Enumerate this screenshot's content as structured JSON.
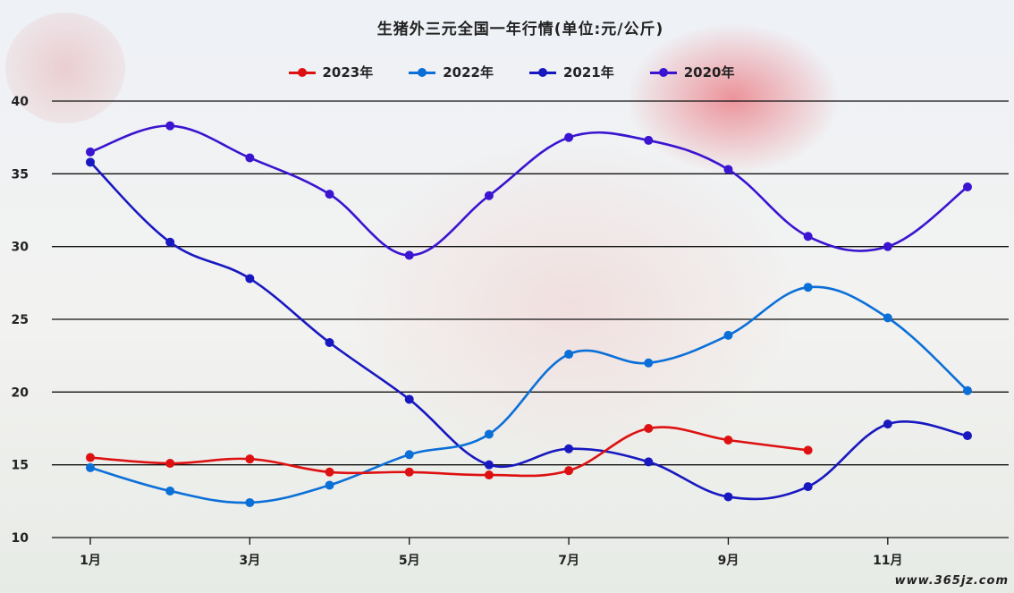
{
  "watermark": "www.365jz.com",
  "chart_data": {
    "type": "line",
    "title": "生猪外三元全国一年行情(单位:元/公斤)",
    "xlabel": "",
    "ylabel": "",
    "ylim": [
      10,
      40
    ],
    "yticks": [
      10,
      15,
      20,
      25,
      30,
      35,
      40
    ],
    "x": [
      1,
      2,
      3,
      4,
      5,
      6,
      7,
      8,
      9,
      10,
      11,
      12
    ],
    "x_tick_labels": [
      "1月",
      "3月",
      "5月",
      "7月",
      "9月",
      "11月"
    ],
    "x_tick_values": [
      1,
      3,
      5,
      7,
      9,
      11
    ],
    "grid": "horizontal",
    "legend_position": "top",
    "series": [
      {
        "name": "2023年",
        "color": "#dd1111",
        "values": [
          15.5,
          15.1,
          15.4,
          14.5,
          14.5,
          14.3,
          14.6,
          17.5,
          16.7,
          16.0,
          null,
          null
        ]
      },
      {
        "name": "2022年",
        "color": "#0b6fd8",
        "values": [
          14.8,
          13.2,
          12.4,
          13.6,
          15.7,
          17.1,
          22.6,
          22.0,
          23.9,
          27.2,
          25.1,
          20.1
        ]
      },
      {
        "name": "2021年",
        "color": "#1818c0",
        "values": [
          35.8,
          30.3,
          27.8,
          23.4,
          19.5,
          15.0,
          16.1,
          15.2,
          12.8,
          13.5,
          17.8,
          17.0
        ]
      },
      {
        "name": "2020年",
        "color": "#3a14d0",
        "values": [
          36.5,
          38.3,
          36.1,
          33.6,
          29.4,
          33.5,
          37.5,
          37.3,
          35.3,
          30.7,
          30.0,
          34.1
        ]
      }
    ]
  }
}
